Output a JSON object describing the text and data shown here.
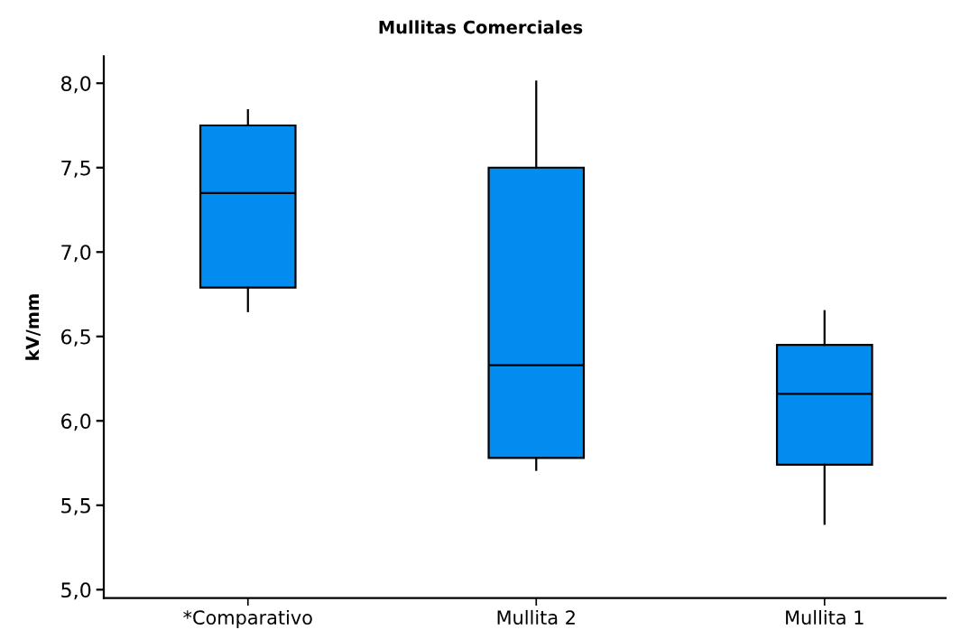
{
  "chart_data": {
    "type": "box",
    "title": "Mullitas Comerciales",
    "ylabel": "kV/mm",
    "categories": [
      "*Comparativo",
      "Mullita 2",
      "Mullita 1"
    ],
    "boxes": [
      {
        "low": 6.65,
        "q1": 6.79,
        "median": 7.35,
        "q3": 7.75,
        "high": 7.84
      },
      {
        "low": 5.71,
        "q1": 5.78,
        "median": 6.33,
        "q3": 7.5,
        "high": 8.01
      },
      {
        "low": 5.39,
        "q1": 5.74,
        "median": 6.16,
        "q3": 6.45,
        "high": 6.65
      }
    ],
    "color": "#038cf0",
    "ylim": [
      4.95,
      8.16
    ],
    "yticks": [
      {
        "value": 5.0,
        "label": "5,0"
      },
      {
        "value": 5.5,
        "label": "5,5"
      },
      {
        "value": 6.0,
        "label": "6,0"
      },
      {
        "value": 6.5,
        "label": "6,5"
      },
      {
        "value": 7.0,
        "label": "7,0"
      },
      {
        "value": 7.5,
        "label": "7,5"
      },
      {
        "value": 8.0,
        "label": "8,0"
      }
    ]
  }
}
